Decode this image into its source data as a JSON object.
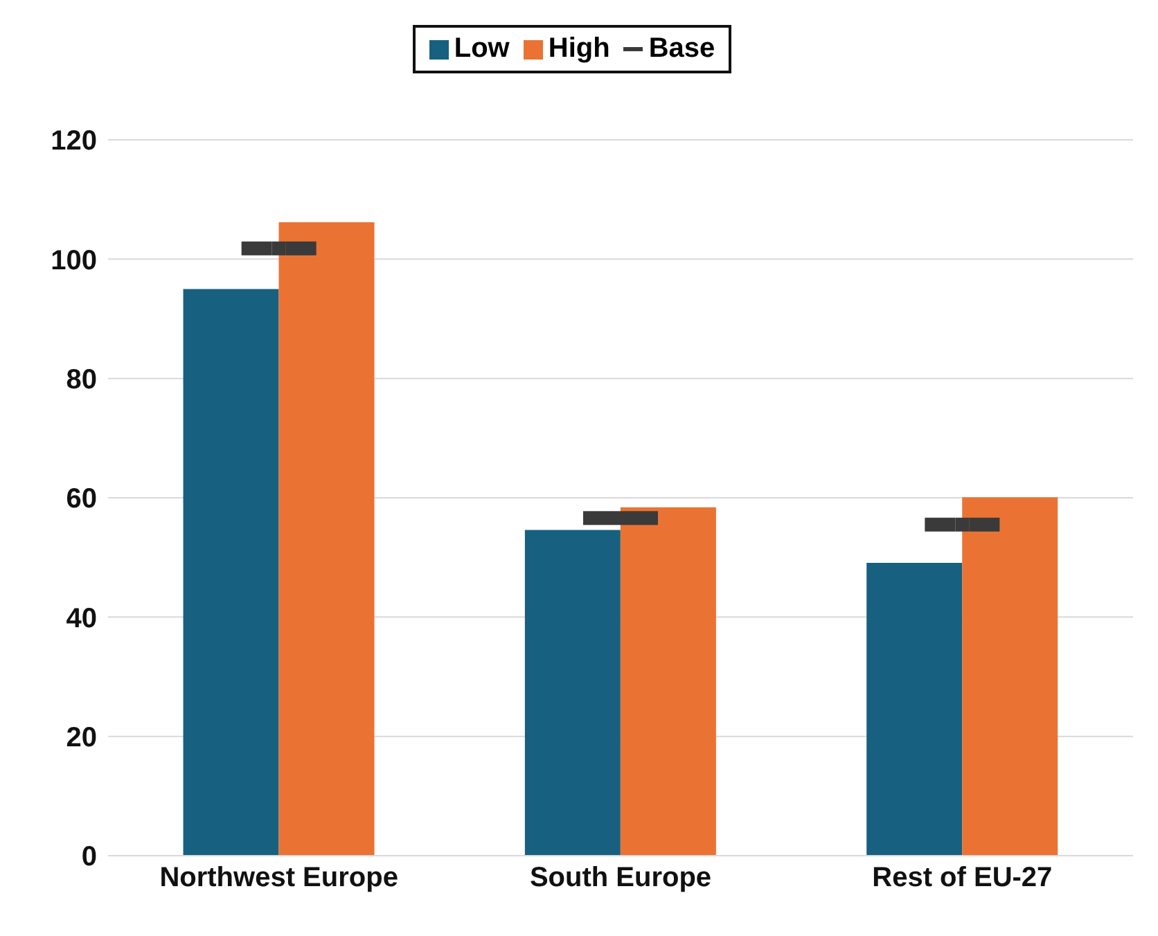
{
  "chart_data": {
    "type": "bar",
    "categories": [
      "Northwest Europe",
      "South Europe",
      "Rest of EU-27"
    ],
    "series": [
      {
        "name": "Low",
        "color": "#17607f",
        "values": [
          95,
          54.6,
          49.1
        ]
      },
      {
        "name": "High",
        "color": "#ea7333",
        "values": [
          106.2,
          58.4,
          60.1
        ]
      },
      {
        "name": "Base",
        "type": "scatter",
        "color": "#3a3a3a",
        "values": [
          101.8,
          56.6,
          55.5
        ]
      }
    ],
    "ylim": [
      0,
      120
    ],
    "yticks": [
      0,
      20,
      40,
      60,
      80,
      100,
      120
    ],
    "grid": "y",
    "legend": "top"
  }
}
